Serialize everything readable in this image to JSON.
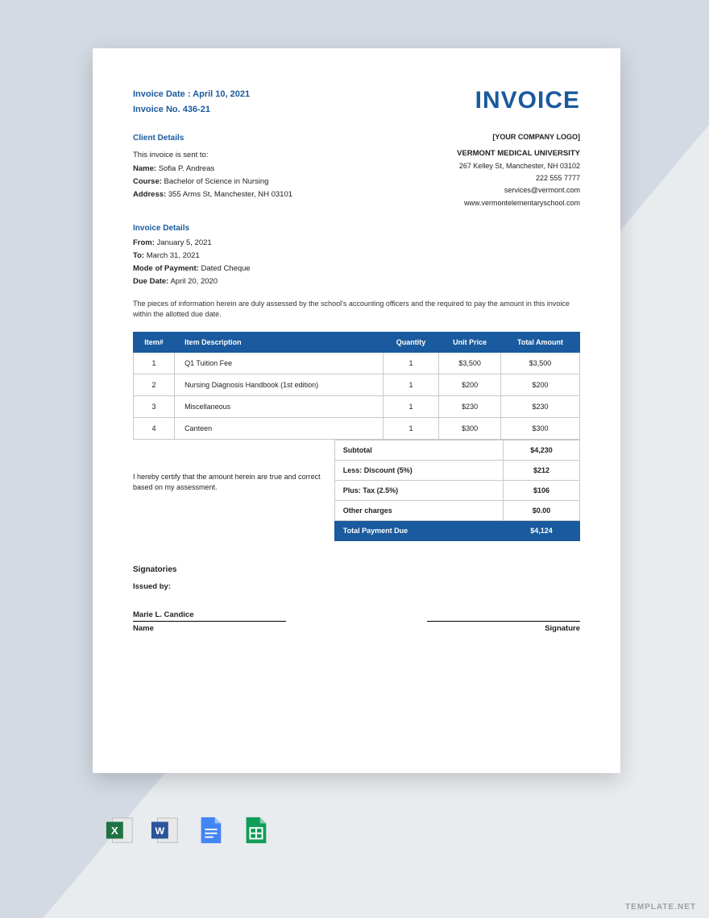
{
  "header": {
    "invoice_date_label": "Invoice Date : April 10, 2021",
    "invoice_no_label": "Invoice No. 436-21",
    "title": "INVOICE"
  },
  "company": {
    "logo_placeholder": "[YOUR COMPANY LOGO]",
    "name": "VERMONT MEDICAL UNIVERSITY",
    "address": "267 Kelley St, Manchester, NH 03102",
    "phone": "222 555 7777",
    "email": "services@vermont.com",
    "website": "www.vermontelementaryschool.com"
  },
  "client": {
    "section": "Client Details",
    "sent_to": "This invoice is sent to:",
    "name_label": "Name:",
    "name": "Sofia P. Andreas",
    "course_label": "Course:",
    "course": "Bachelor of Science in Nursing",
    "address_label": "Address:",
    "address": "355 Arms St, Manchester, NH 03101"
  },
  "details": {
    "section": "Invoice Details",
    "from_label": "From:",
    "from": "January 5, 2021",
    "to_label": "To:",
    "to": "March 31, 2021",
    "mode_label": "Mode of Payment:",
    "mode": "Dated Cheque",
    "due_label": "Due Date:",
    "due": "April 20, 2020"
  },
  "note": "The pieces of information herein are duly assessed by the school's accounting officers and the required to pay the amount in this invoice within the allotted due date.",
  "table": {
    "headers": [
      "Item#",
      "Item Description",
      "Quantity",
      "Unit Price",
      "Total Amount"
    ],
    "rows": [
      [
        "1",
        "Q1 Tuition Fee",
        "1",
        "$3,500",
        "$3,500"
      ],
      [
        "2",
        "Nursing Diagnosis Handbook (1st edition)",
        "1",
        "$200",
        "$200"
      ],
      [
        "3",
        "Miscellaneous",
        "1",
        "$230",
        "$230"
      ],
      [
        "4",
        "Canteen",
        "1",
        "$300",
        "$300"
      ]
    ]
  },
  "certify": "I hereby certify that the amount herein are true and correct based on my assessment.",
  "totals": {
    "rows": [
      [
        "Subtotal",
        "$4,230"
      ],
      [
        "Less: Discount (5%)",
        "$212"
      ],
      [
        "Plus: Tax (2.5%)",
        "$106"
      ],
      [
        "Other charges",
        "$0.00"
      ]
    ],
    "due_label": "Total Payment Due",
    "due_value": "$4,124"
  },
  "signatories": {
    "section": "Signatories",
    "issued": "Issued by:",
    "name": "Marie L. Candice",
    "name_label": "Name",
    "sig_label": "Signature"
  },
  "watermark": "TEMPLATE.NET",
  "icons": {
    "excel_color": "#1f7244",
    "word_color": "#2a5599",
    "docs_colors": [
      "#4285f4",
      "#fbbc05",
      "#ea4335"
    ],
    "sheets_color": "#0f9d58"
  }
}
